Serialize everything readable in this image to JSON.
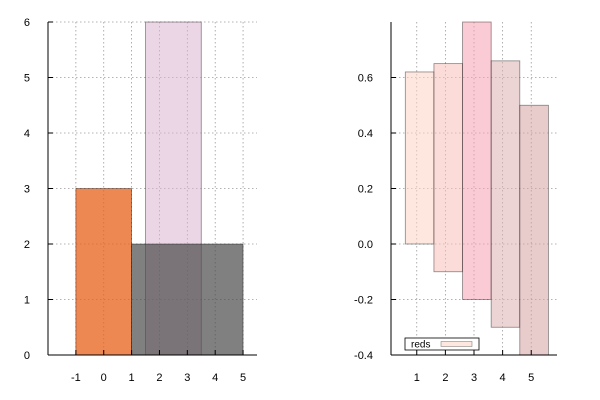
{
  "chart_data": [
    {
      "type": "bar",
      "panel": "left",
      "xlim": [
        -2,
        5.5
      ],
      "ylim": [
        0,
        6
      ],
      "xticks": [
        -1,
        0,
        1,
        2,
        3,
        4,
        5
      ],
      "yticks": [
        0,
        1,
        2,
        3,
        4,
        5,
        6
      ],
      "grid": true,
      "bars": [
        {
          "x0": 1.5,
          "x1": 3.5,
          "y0": 0,
          "y1": 6,
          "color": "#d8b4cf",
          "opacity": 0.55
        },
        {
          "x0": -1,
          "x1": 1,
          "y0": 0,
          "y1": 3,
          "color": "#e8601a",
          "opacity": 0.75
        },
        {
          "x0": 1,
          "x1": 5,
          "y0": 0,
          "y1": 2,
          "color": "#4a4a4a",
          "opacity": 0.7
        }
      ]
    },
    {
      "type": "bar",
      "panel": "right",
      "xlim": [
        0.1,
        5.9
      ],
      "ylim": [
        -0.4,
        0.8
      ],
      "xticks": [
        1,
        2,
        3,
        4,
        5
      ],
      "yticks": [
        -0.4,
        -0.2,
        0.0,
        0.2,
        0.4,
        0.6
      ],
      "ytick_labels": [
        "-0.4",
        "-0.2",
        "0.0",
        "0.2",
        "0.4",
        "0.6"
      ],
      "grid": true,
      "legend": {
        "label": "reds",
        "placement": "bottom-left"
      },
      "bars": [
        {
          "x0": 0.6,
          "x1": 1.6,
          "y0": 0.0,
          "y1": 0.62,
          "color": "#fbd3c4"
        },
        {
          "x0": 1.6,
          "x1": 2.6,
          "y0": -0.1,
          "y1": 0.65,
          "color": "#f8c0b8"
        },
        {
          "x0": 2.6,
          "x1": 3.6,
          "y0": -0.2,
          "y1": 0.8,
          "color": "#f5a0b0"
        },
        {
          "x0": 3.6,
          "x1": 4.6,
          "y0": -0.3,
          "y1": 0.66,
          "color": "#dfb0b0"
        },
        {
          "x0": 4.6,
          "x1": 5.6,
          "y0": -0.4,
          "y1": 0.5,
          "color": "#d5a3a3"
        }
      ]
    }
  ]
}
